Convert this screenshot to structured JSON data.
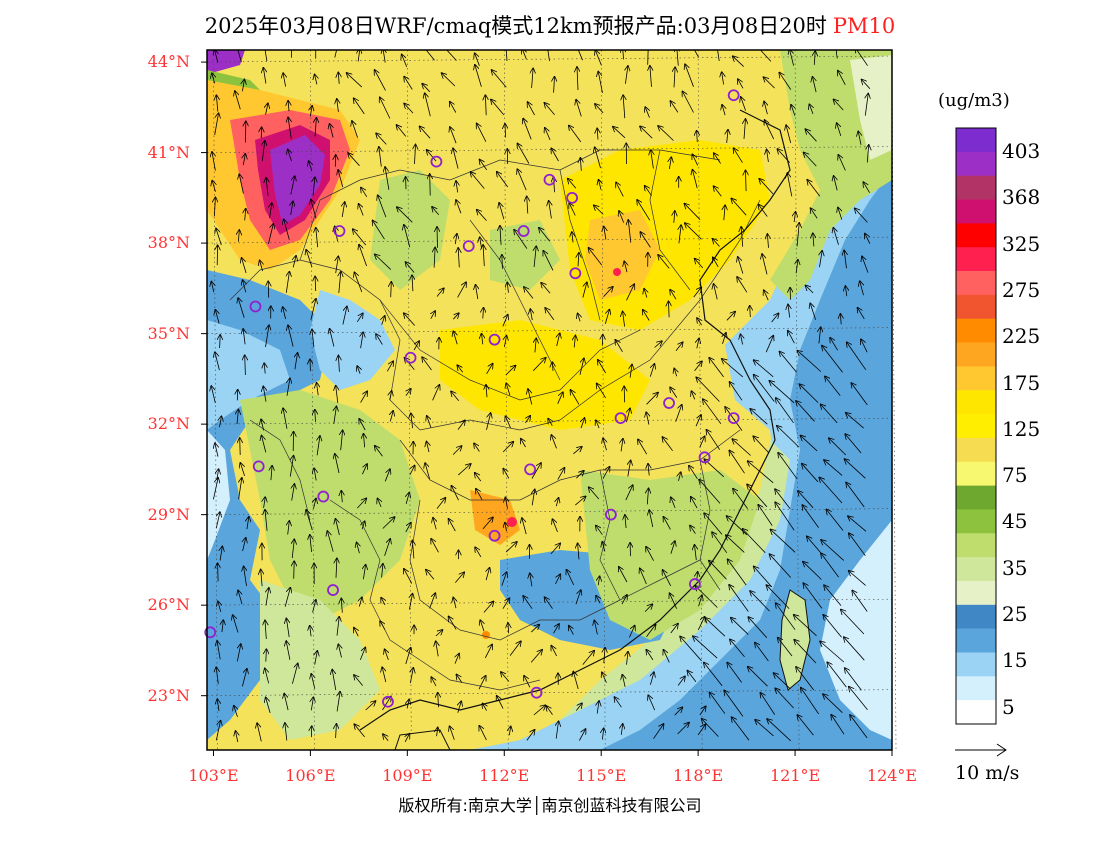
{
  "title": {
    "text": "2025年03月08日WRF/cmaq模式12km预报产品:03月08日20时",
    "pollutant": "PM10"
  },
  "map": {
    "lat_ticks": [
      "44°N",
      "41°N",
      "38°N",
      "35°N",
      "32°N",
      "29°N",
      "26°N",
      "23°N"
    ],
    "lon_ticks": [
      "103°E",
      "106°E",
      "109°E",
      "112°E",
      "115°E",
      "118°E",
      "121°E",
      "124°E"
    ],
    "lat_values": [
      44,
      41,
      38,
      35,
      32,
      29,
      26,
      23
    ],
    "lon_values": [
      103,
      106,
      109,
      112,
      115,
      118,
      121,
      124
    ],
    "lon_range": [
      102.8,
      124
    ],
    "lat_range": [
      21.2,
      44.4
    ],
    "stations": [
      [
        109.9,
        40.7
      ],
      [
        119.1,
        42.9
      ],
      [
        113.4,
        40.1
      ],
      [
        114.1,
        39.5
      ],
      [
        106.9,
        38.4
      ],
      [
        112.6,
        38.4
      ],
      [
        110.9,
        37.9
      ],
      [
        114.2,
        37.0
      ],
      [
        104.3,
        35.9
      ],
      [
        111.7,
        34.8
      ],
      [
        109.1,
        34.2
      ],
      [
        117.1,
        32.7
      ],
      [
        115.6,
        32.2
      ],
      [
        119.1,
        32.2
      ],
      [
        104.4,
        30.6
      ],
      [
        112.8,
        30.5
      ],
      [
        118.2,
        30.9
      ],
      [
        106.4,
        29.6
      ],
      [
        115.3,
        29.0
      ],
      [
        111.7,
        28.3
      ],
      [
        117.9,
        26.7
      ],
      [
        106.7,
        26.5
      ],
      [
        102.9,
        25.1
      ],
      [
        108.4,
        22.8
      ],
      [
        113.0,
        23.1
      ]
    ]
  },
  "legend": {
    "unit": "(ug/m3)",
    "labels": [
      "403",
      "368",
      "325",
      "275",
      "225",
      "175",
      "125",
      "75",
      "45",
      "35",
      "25",
      "15",
      "5"
    ],
    "colors": [
      "#7d2ccf",
      "#9b2fc6",
      "#b23467",
      "#d0106f",
      "#ff0000",
      "#ff2050",
      "#ff6060",
      "#f05530",
      "#ff8c00",
      "#ffa620",
      "#ffc830",
      "#ffe600",
      "#ffee00",
      "#f5dc50",
      "#f8f870",
      "#6fa82e",
      "#8cc23e",
      "#bedd6d",
      "#cfe79b",
      "#e6f1c8",
      "#3f87c5",
      "#5aa5dc",
      "#9bd3f4",
      "#d4f0fc",
      "#ffffff"
    ]
  },
  "wind_reference": "10 m/s",
  "copyright": "版权所有:南京大学│南京创蓝科技有限公司"
}
